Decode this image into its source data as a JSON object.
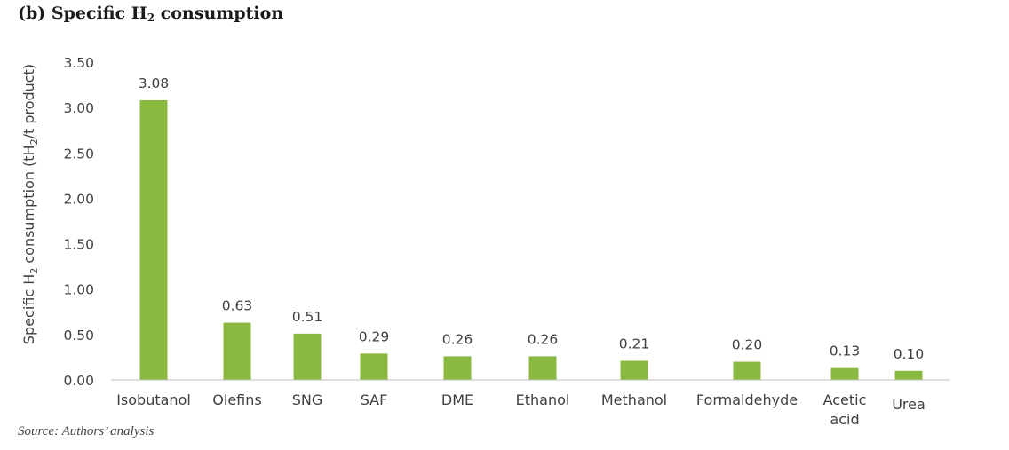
{
  "title": {
    "prefix": "(b) Specific H",
    "sub": "2",
    "suffix": " consumption"
  },
  "source": "Source: Authors’ analysis",
  "chart_data": {
    "type": "bar",
    "categories": [
      [
        "Isobutanol"
      ],
      [
        "Olefins"
      ],
      [
        "SNG"
      ],
      [
        "SAF"
      ],
      [
        "DME"
      ],
      [
        "Ethanol"
      ],
      [
        "Methanol"
      ],
      [
        "Formaldehyde"
      ],
      [
        "Acetic",
        "acid"
      ],
      [
        "Urea"
      ]
    ],
    "values": [
      3.08,
      0.63,
      0.51,
      0.29,
      0.26,
      0.26,
      0.21,
      0.2,
      0.13,
      0.1
    ],
    "data_labels": [
      "3.08",
      "0.63",
      "0.51",
      "0.29",
      "0.26",
      "0.26",
      "0.21",
      "0.20",
      "0.13",
      "0.10"
    ],
    "ylabel": {
      "prefix": "Specific H",
      "sub": "2",
      "suffix": " consumption  (tH",
      "sub2": "2",
      "suffix2": "/t product)"
    },
    "ylim": [
      0,
      3.5
    ],
    "yticks": [
      "0.00",
      "0.50",
      "1.00",
      "1.50",
      "2.00",
      "2.50",
      "3.00",
      "3.50"
    ],
    "grid": false,
    "bar_color": "#8ab93f"
  }
}
